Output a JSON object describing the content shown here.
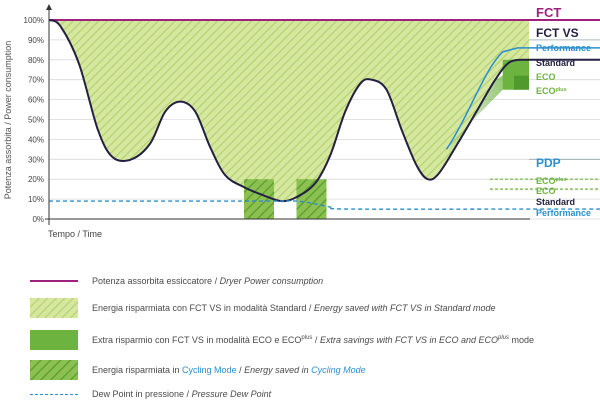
{
  "chart_data": {
    "type": "area",
    "ylabel": "Potenza assorbita / Power consumption",
    "xlabel": "Tempo / Time",
    "ylim": [
      0,
      100
    ],
    "y_ticks": [
      "0%",
      "10%",
      "20%",
      "30%",
      "40%",
      "50%",
      "60%",
      "70%",
      "80%",
      "90%",
      "100%"
    ],
    "series": [
      {
        "name": "FCT",
        "constant": 100,
        "color": "#a0207d"
      },
      {
        "name": "FCT VS",
        "points": [
          [
            0,
            100
          ],
          [
            3,
            97
          ],
          [
            8,
            78
          ],
          [
            13,
            45
          ],
          [
            17,
            31
          ],
          [
            22,
            30
          ],
          [
            27,
            38
          ],
          [
            31,
            54
          ],
          [
            35,
            59
          ],
          [
            39,
            54
          ],
          [
            43,
            36
          ],
          [
            47,
            22
          ],
          [
            52,
            16
          ],
          [
            57,
            12
          ],
          [
            62,
            9
          ],
          [
            66,
            11
          ],
          [
            71,
            18
          ],
          [
            75,
            32
          ],
          [
            79,
            54
          ],
          [
            83,
            68
          ],
          [
            86,
            70
          ],
          [
            90,
            65
          ],
          [
            94,
            45
          ],
          [
            98,
            27
          ],
          [
            101,
            20
          ],
          [
            104,
            23
          ],
          [
            109,
            38
          ],
          [
            114,
            54
          ],
          [
            119,
            70
          ],
          [
            123,
            79
          ],
          [
            128,
            80
          ]
        ],
        "color": "#232042"
      },
      {
        "name": "Dew Point",
        "points": [
          [
            0,
            9
          ],
          [
            57,
            9
          ],
          [
            62,
            9
          ],
          [
            66,
            9
          ],
          [
            70,
            8
          ],
          [
            75,
            6
          ],
          [
            80,
            5
          ],
          [
            128,
            5
          ]
        ],
        "color": "#2a8fce"
      }
    ],
    "right_top_labels": [
      {
        "text": "FCT",
        "value": 100
      },
      {
        "text": "FCT VS",
        "value": 90
      },
      {
        "text": "Performance",
        "value": 86,
        "color": "#2a8fce"
      },
      {
        "text": "Standard",
        "value": 80,
        "color": "#232042"
      },
      {
        "text": "ECO",
        "value": 72,
        "color": "#6db33f"
      },
      {
        "text": "ECO",
        "sup": "plus",
        "value": 65,
        "color": "#6db33f"
      }
    ],
    "right_bottom_labels": [
      {
        "text": "PDP",
        "value": 30
      },
      {
        "text": "ECO",
        "sup": "plus",
        "value": 20,
        "color": "#6db33f"
      },
      {
        "text": "ECO",
        "value": 15,
        "color": "#6db33f"
      },
      {
        "text": "Standard",
        "value": 9,
        "color": "#232042"
      },
      {
        "text": "Performance",
        "value": 4,
        "color": "#2a8fce"
      }
    ]
  },
  "legend": [
    {
      "text": "Potenza assorbita essiccatore / ",
      "italic": "Dryer Power consumption"
    },
    {
      "text": "Energia risparmiata con FCT VS in modalità Standard / ",
      "italic": "Energy saved with FCT VS in Standard mode"
    },
    {
      "text": "Extra risparmio con FCT VS in modalità ECO e ECO",
      "sup": "plus",
      "text2": "  / ",
      "italic": "Extra savings with FCT VS in ECO and ECO",
      "italic_sup": "plus",
      "italic_end": " mode"
    },
    {
      "text": "Energia risparmiata in ",
      "blue": "Cycling Mode",
      "text_mid": " / ",
      "italic": "Energy saved in ",
      "italic_blue": "Cycling Mode"
    },
    {
      "text": "Dew Point in pressione / ",
      "italic": "Pressure Dew Point"
    }
  ],
  "colors": {
    "fct": "#a0207d",
    "fctvs": "#232042",
    "saving_light": "#c8de8a",
    "saving_dark": "#6db33f",
    "cycling": "#8cc152",
    "dewpoint": "#2a8fce",
    "grid": "#d9d9d9"
  }
}
